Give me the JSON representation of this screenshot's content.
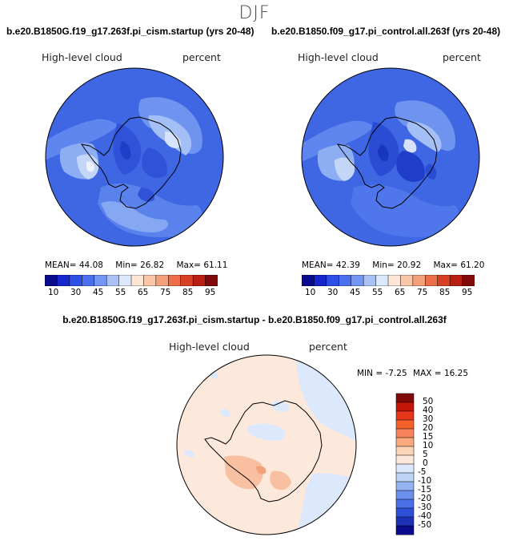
{
  "season": "DJF",
  "top_left": {
    "case_title": "b.e20.B1850G.f19_g17.263f.pi_cism.startup (yrs 20-48)",
    "field_label": "High-level cloud",
    "units_label": "percent",
    "stats": {
      "mean_label": "MEAN=",
      "mean": "44.08",
      "min_label": "Min=",
      "min": "26.82",
      "max_label": "Max=",
      "max": "61.11"
    }
  },
  "top_right": {
    "case_title": "b.e20.B1850.f09_g17.pi_control.all.263f (yrs 20-48)",
    "field_label": "High-level cloud",
    "units_label": "percent",
    "stats": {
      "mean_label": "MEAN=",
      "mean": "42.39",
      "min_label": "Min=",
      "min": "20.92",
      "max_label": "Max=",
      "max": "61.20"
    }
  },
  "top_colorbar": {
    "colors": [
      "#0a0a8c",
      "#1426cc",
      "#2e4fe6",
      "#4a6fef",
      "#7396f2",
      "#a9c2f5",
      "#dce8fb",
      "#fde6d6",
      "#f9c6a7",
      "#f4a07a",
      "#ec6f4a",
      "#d84026",
      "#b81e12",
      "#800a0a"
    ],
    "ticks": [
      "10",
      "30",
      "45",
      "55",
      "65",
      "75",
      "85",
      "95"
    ]
  },
  "diff": {
    "title": "b.e20.B1850G.f19_g17.263f.pi_cism.startup - b.e20.B1850.f09_g17.pi_control.all.263f",
    "field_label": "High-level cloud",
    "units_label": "percent",
    "stats": {
      "min_label": "MIN =",
      "min": "-7.25",
      "max_label": "MAX =",
      "max": "16.25"
    }
  },
  "diff_colorbar": {
    "colors": [
      "#800a0a",
      "#c4150a",
      "#e8361c",
      "#f4622c",
      "#f7845a",
      "#f9a97e",
      "#fcd4b8",
      "#fde8dc",
      "#dce8fb",
      "#bcd3f6",
      "#94b4f1",
      "#6c8fec",
      "#4a6fe6",
      "#2e4fd8",
      "#1c33b5",
      "#0a0a8c"
    ],
    "labels": [
      "50",
      "40",
      "30",
      "20",
      "15",
      "10",
      "5",
      "0",
      "-5",
      "-10",
      "-15",
      "-20",
      "-30",
      "-40",
      "-50"
    ]
  }
}
